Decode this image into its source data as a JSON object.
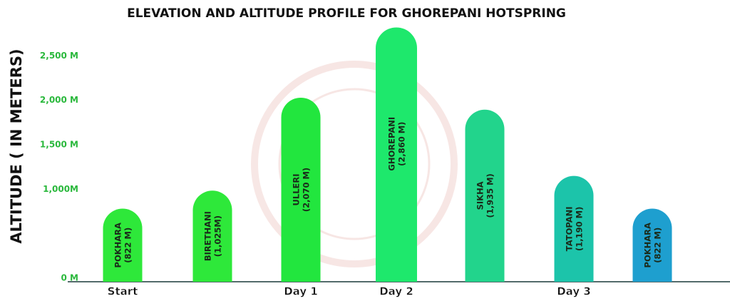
{
  "chart_data": {
    "type": "bar",
    "title": "ELEVATION AND ALTITUDE PROFILE FOR GHOREPANI HOTSPRING",
    "y_label": "ALTITUDE ( IN METERS)",
    "categories": [
      "POKHARA",
      "BIRETHANI",
      "ULLERI",
      "GHOREPANI",
      "SIKHA",
      "TATOPANI",
      "POKHARA"
    ],
    "values": [
      822,
      1025,
      2070,
      2860,
      1935,
      1190,
      822
    ],
    "value_labels": [
      "(822 M)",
      "(1,025M)",
      "(2,070 M)",
      "(2,860 M)",
      "(1,935 M)",
      "(1,190 M)",
      "(822 M)"
    ],
    "colors": [
      "#2ee83a",
      "#2ee83a",
      "#22e63e",
      "#1ee86c",
      "#22d48c",
      "#1cc4aa",
      "#1e9fcf"
    ],
    "x_group_labels": [
      "Start",
      null,
      "Day 1",
      "Day 2",
      null,
      "Day 3",
      null
    ],
    "ylim": [
      0,
      3000
    ],
    "yticks": [
      {
        "value": 0,
        "label": "0 M"
      },
      {
        "value": 1000,
        "label": "1,000M"
      },
      {
        "value": 1500,
        "label": "1,500 M"
      },
      {
        "value": 2000,
        "label": "2,000 M"
      },
      {
        "value": 2500,
        "label": "2,500 M"
      }
    ],
    "grid": true
  }
}
